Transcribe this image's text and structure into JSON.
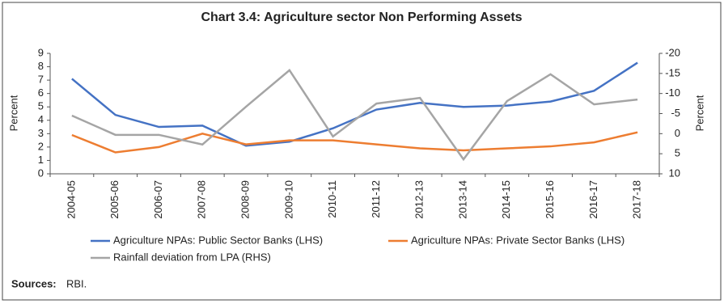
{
  "chart_data": {
    "type": "line",
    "title": "Chart 3.4: Agriculture sector Non Performing Assets",
    "categories": [
      "2004-05",
      "2005-06",
      "2006-07",
      "2007-08",
      "2008-09",
      "2009-10",
      "2010-11",
      "2011-12",
      "2012-13",
      "2013-14",
      "2014-15",
      "2015-16",
      "2016-17",
      "2017-18"
    ],
    "series": [
      {
        "name": "Agriculture NPAs: Public Sector Banks (LHS)",
        "color": "#4472c4",
        "values": [
          7.1,
          4.4,
          3.5,
          3.6,
          2.1,
          2.4,
          3.4,
          4.8,
          5.3,
          5.0,
          5.1,
          5.4,
          6.2,
          8.3
        ]
      },
      {
        "name": "Agriculture NPAs: Private Sector Banks (LHS)",
        "color": "#ed7d31",
        "values": [
          2.9,
          1.6,
          2.0,
          3.0,
          2.2,
          2.5,
          2.5,
          2.2,
          1.9,
          1.75,
          1.9,
          2.05,
          2.35,
          3.1
        ]
      },
      {
        "name": "Rainfall deviation from LPA (RHS)",
        "color": "#a5a5a5",
        "axis": "y2",
        "values": [
          -4.5,
          0.3,
          0.3,
          2.7,
          -6.7,
          -15.8,
          0.7,
          -7.5,
          -8.9,
          6.4,
          -8.1,
          -14.8,
          -7.3,
          -8.5
        ]
      }
    ],
    "ylabel": "Percent",
    "y2label": "Percent",
    "ylim": [
      0,
      9
    ],
    "yticks": [
      0,
      1,
      2,
      3,
      4,
      5,
      6,
      7,
      8,
      9
    ],
    "y2lim": [
      -20,
      10
    ],
    "y2ticks": [
      -20,
      -15,
      -10,
      -5,
      0,
      5,
      10
    ],
    "y2_inverted": true,
    "source_label": "Sources:",
    "source_text": "RBI."
  }
}
